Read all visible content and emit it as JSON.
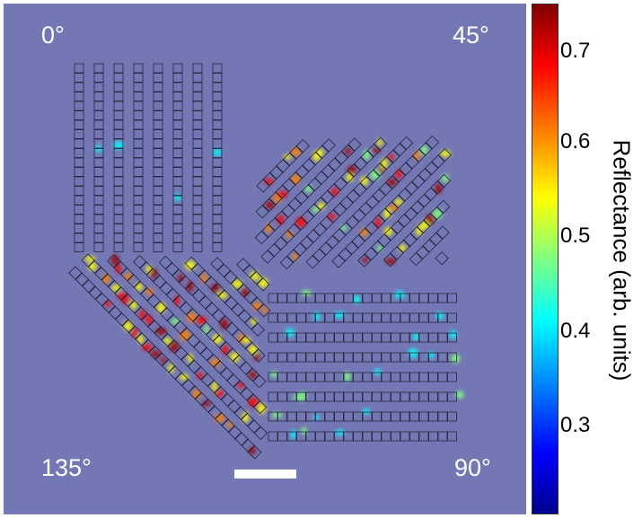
{
  "image": {
    "description_labels": {
      "top_left": "0°",
      "top_right": "45°",
      "bottom_left": "135°",
      "bottom_right": "90°"
    },
    "background_color": "#7377b4",
    "scale_bar": "white bar (no printed length)"
  },
  "colorbar": {
    "label": "Reflectance (arb. units)",
    "ticks": [
      "0.7",
      "0.6",
      "0.5",
      "0.4",
      "0.3"
    ],
    "tick_values": [
      0.7,
      0.6,
      0.5,
      0.4,
      0.3
    ],
    "range": [
      0.2,
      0.75
    ],
    "colormap": "jet"
  }
}
